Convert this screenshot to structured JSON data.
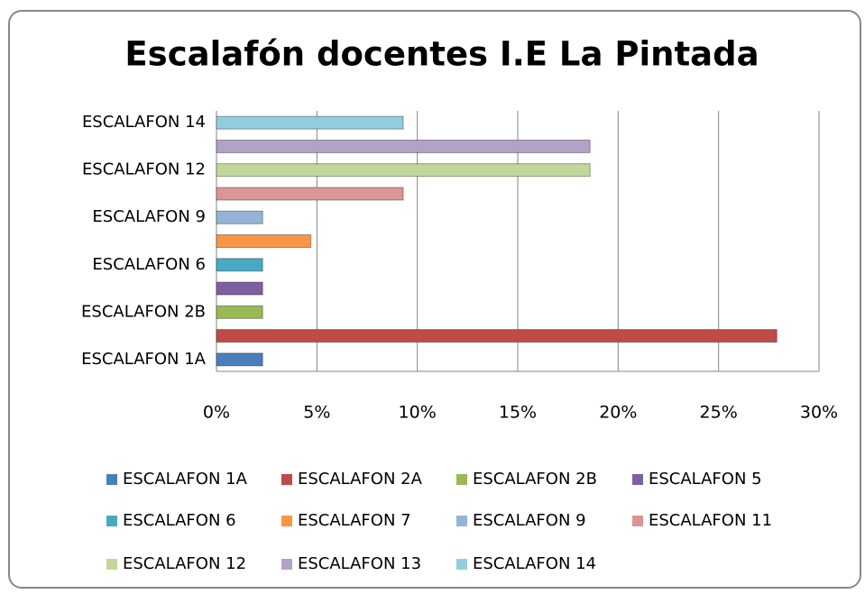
{
  "chart_data": {
    "type": "hbar",
    "title": "Escalafón docentes I.E La Pintada",
    "categories": [
      "ESCALAFON 1A",
      null,
      "ESCALAFON 2B",
      null,
      "ESCALAFON 6",
      null,
      "ESCALAFON 9",
      null,
      "ESCALAFON 12",
      null,
      "ESCALAFON 14"
    ],
    "legend": [
      "ESCALAFON 1A",
      "ESCALAFON 2A",
      "ESCALAFON 2B",
      "ESCALAFON 5",
      "ESCALAFON 6",
      "ESCALAFON 7",
      "ESCALAFON 9",
      "ESCALAFON 11",
      "ESCALAFON 12",
      "ESCALAFON 13",
      "ESCALAFON 14"
    ],
    "values": [
      2.3,
      27.9,
      2.3,
      2.3,
      2.3,
      4.7,
      2.3,
      9.3,
      18.6,
      18.6,
      9.3
    ],
    "colors": [
      "#4a7ebb",
      "#be4b48",
      "#98b954",
      "#7d60a0",
      "#46aac5",
      "#f79646",
      "#95b3d7",
      "#d99694",
      "#c3d69b",
      "#b3a2c7",
      "#93cddd"
    ],
    "xlim": [
      0,
      30
    ],
    "xticks": [
      {
        "value": 0,
        "label": "0%"
      },
      {
        "value": 5,
        "label": "5%"
      },
      {
        "value": 10,
        "label": "10%"
      },
      {
        "value": 15,
        "label": "15%"
      },
      {
        "value": 20,
        "label": "20%"
      },
      {
        "value": 25,
        "label": "25%"
      },
      {
        "value": 30,
        "label": "30%"
      }
    ],
    "grid": true
  }
}
